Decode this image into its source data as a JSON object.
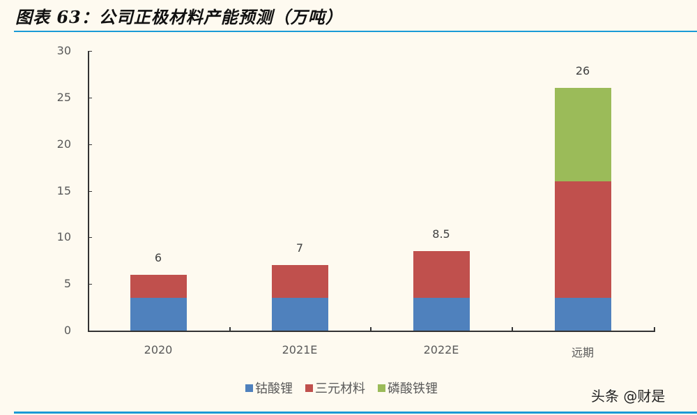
{
  "header": {
    "title": "图表 63：公司正极材料产能预测（万吨）"
  },
  "watermark": "头条 @财是",
  "chart_data": {
    "type": "bar",
    "stacked": true,
    "title": "图表 63：公司正极材料产能预测（万吨）",
    "xlabel": "",
    "ylabel": "",
    "ylim": [
      0,
      30
    ],
    "yticks": [
      "0",
      "5",
      "10",
      "15",
      "20",
      "25",
      "30"
    ],
    "categories": [
      "2020",
      "2021E",
      "2022E",
      "远期"
    ],
    "series": [
      {
        "name": "钴酸锂",
        "color": "#4f81bd",
        "values": [
          3.5,
          3.5,
          3.5,
          3.5
        ]
      },
      {
        "name": "三元材料",
        "color": "#c0504d",
        "values": [
          2.5,
          3.5,
          5,
          12.5
        ]
      },
      {
        "name": "磷酸铁锂",
        "color": "#9bbb59",
        "values": [
          0,
          0,
          0,
          10
        ]
      }
    ],
    "totals": [
      "6",
      "7",
      "8.5",
      "26"
    ],
    "grid": false,
    "legend_position": "bottom"
  }
}
